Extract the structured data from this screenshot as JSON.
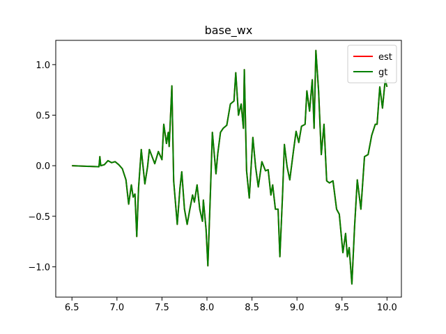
{
  "chart_data": {
    "type": "line",
    "title": "base_wx",
    "x": [
      6.5,
      6.8,
      6.81,
      6.82,
      6.86,
      6.9,
      6.94,
      6.98,
      7.02,
      7.06,
      7.1,
      7.13,
      7.16,
      7.18,
      7.2,
      7.22,
      7.24,
      7.27,
      7.29,
      7.31,
      7.34,
      7.36,
      7.39,
      7.42,
      7.46,
      7.5,
      7.52,
      7.55,
      7.57,
      7.58,
      7.61,
      7.63,
      7.67,
      7.7,
      7.72,
      7.75,
      7.78,
      7.81,
      7.84,
      7.86,
      7.89,
      7.92,
      7.95,
      7.96,
      7.99,
      8.01,
      8.04,
      8.06,
      8.1,
      8.12,
      8.15,
      8.18,
      8.22,
      8.26,
      8.3,
      8.32,
      8.35,
      8.38,
      8.405,
      8.415,
      8.44,
      8.47,
      8.51,
      8.54,
      8.57,
      8.61,
      8.65,
      8.68,
      8.71,
      8.73,
      8.76,
      8.79,
      8.81,
      8.84,
      8.86,
      8.89,
      8.92,
      8.96,
      8.99,
      9.02,
      9.05,
      9.09,
      9.11,
      9.14,
      9.17,
      9.19,
      9.21,
      9.24,
      9.27,
      9.3,
      9.33,
      9.36,
      9.4,
      9.44,
      9.47,
      9.51,
      9.54,
      9.56,
      9.58,
      9.61,
      9.64,
      9.67,
      9.71,
      9.75,
      9.79,
      9.83,
      9.87,
      9.89,
      9.92,
      9.95,
      9.98,
      10.0
    ],
    "series": [
      {
        "name": "est",
        "color": "#ff0000",
        "values": [
          0.0,
          -0.01,
          0.09,
          0.0,
          0.01,
          0.05,
          0.03,
          0.04,
          0.01,
          -0.03,
          -0.14,
          -0.38,
          -0.19,
          -0.31,
          -0.28,
          -0.7,
          -0.22,
          0.16,
          -0.01,
          -0.18,
          -0.01,
          0.16,
          0.09,
          0.02,
          0.14,
          0.06,
          0.41,
          0.22,
          0.33,
          0.19,
          0.79,
          -0.15,
          -0.58,
          -0.22,
          -0.06,
          -0.43,
          -0.58,
          -0.43,
          -0.29,
          -0.36,
          -0.19,
          -0.43,
          -0.55,
          -0.34,
          -0.63,
          -0.99,
          -0.22,
          0.33,
          -0.08,
          0.12,
          0.33,
          0.37,
          0.4,
          0.61,
          0.64,
          0.92,
          0.5,
          0.61,
          0.37,
          0.95,
          -0.05,
          -0.32,
          0.28,
          -0.01,
          -0.21,
          0.04,
          -0.05,
          -0.04,
          -0.29,
          -0.19,
          -0.43,
          -0.43,
          -0.9,
          -0.28,
          0.21,
          -0.01,
          -0.14,
          0.14,
          0.34,
          0.23,
          0.39,
          0.41,
          0.74,
          0.54,
          0.85,
          0.37,
          1.14,
          0.74,
          0.11,
          0.41,
          -0.15,
          -0.17,
          -0.15,
          -0.43,
          -0.48,
          -0.86,
          -0.67,
          -0.9,
          -0.81,
          -1.17,
          -0.6,
          -0.14,
          -0.43,
          0.09,
          0.11,
          0.3,
          0.41,
          0.41,
          0.78,
          0.57,
          0.85,
          0.78
        ]
      },
      {
        "name": "gt",
        "color": "#008000",
        "values": [
          0.0,
          -0.01,
          0.09,
          0.0,
          0.01,
          0.05,
          0.03,
          0.04,
          0.01,
          -0.03,
          -0.14,
          -0.38,
          -0.19,
          -0.31,
          -0.28,
          -0.7,
          -0.22,
          0.16,
          -0.01,
          -0.18,
          -0.01,
          0.16,
          0.09,
          0.02,
          0.14,
          0.06,
          0.41,
          0.22,
          0.33,
          0.19,
          0.79,
          -0.15,
          -0.58,
          -0.22,
          -0.06,
          -0.43,
          -0.58,
          -0.43,
          -0.29,
          -0.36,
          -0.19,
          -0.43,
          -0.55,
          -0.34,
          -0.63,
          -0.99,
          -0.22,
          0.33,
          -0.08,
          0.12,
          0.33,
          0.37,
          0.4,
          0.61,
          0.64,
          0.92,
          0.5,
          0.61,
          0.37,
          0.95,
          -0.05,
          -0.32,
          0.28,
          -0.01,
          -0.21,
          0.04,
          -0.05,
          -0.04,
          -0.29,
          -0.19,
          -0.43,
          -0.43,
          -0.9,
          -0.28,
          0.21,
          -0.01,
          -0.14,
          0.14,
          0.34,
          0.23,
          0.39,
          0.41,
          0.74,
          0.54,
          0.85,
          0.37,
          1.14,
          0.74,
          0.11,
          0.41,
          -0.15,
          -0.17,
          -0.15,
          -0.43,
          -0.48,
          -0.86,
          -0.67,
          -0.9,
          -0.81,
          -1.17,
          -0.6,
          -0.14,
          -0.43,
          0.09,
          0.11,
          0.3,
          0.41,
          0.41,
          0.78,
          0.57,
          0.85,
          0.78
        ]
      }
    ],
    "xlim": [
      6.32,
      10.16
    ],
    "ylim": [
      -1.3,
      1.24
    ],
    "xticks": [
      6.5,
      {
        "value": 7,
        "label": "7.0"
      },
      7.5,
      {
        "value": 8,
        "label": "8.0"
      },
      8.5,
      {
        "value": 9,
        "label": "9.0"
      },
      9.5,
      {
        "value": 10,
        "label": "10.0"
      }
    ],
    "yticks": [
      {
        "value": -1,
        "label": "−1.0"
      },
      {
        "value": -0.5,
        "label": "−0.5"
      },
      {
        "value": 0,
        "label": "0.0"
      },
      {
        "value": 0.5,
        "label": "0.5"
      },
      {
        "value": 1,
        "label": "1.0"
      }
    ],
    "legend": "upper right"
  }
}
